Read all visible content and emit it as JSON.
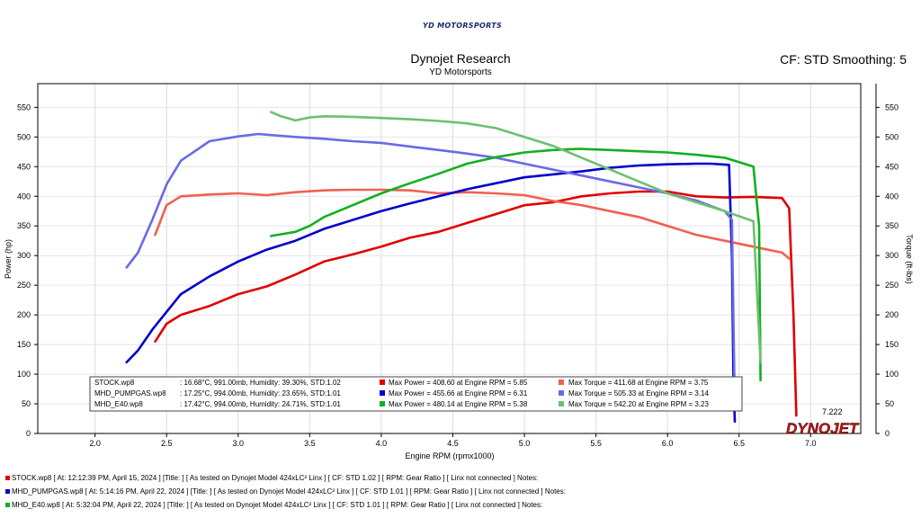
{
  "header": {
    "logo_text": "YD MOTORSPORTS",
    "title": "Dynojet Research",
    "subtitle": "YD Motorsports",
    "cf_label": "CF: STD Smoothing: 5"
  },
  "colors": {
    "stock_power": "#e00000",
    "stock_torque": "#f06050",
    "pump_power": "#0000cc",
    "pump_torque": "#6a6ae6",
    "e40_power": "#10b020",
    "e40_torque": "#6cc070"
  },
  "chart_data": {
    "type": "line",
    "xlabel": "Engine RPM (rpmx1000)",
    "ylabel": "Power (hp)",
    "y2label": "Torque (ft-lbs)",
    "xlim": [
      1.6,
      7.35
    ],
    "ylim": [
      0,
      590
    ],
    "xticks": [
      2.0,
      2.5,
      3.0,
      3.5,
      4.0,
      4.5,
      5.0,
      5.5,
      6.0,
      6.5,
      7.0
    ],
    "yticks": [
      0,
      50,
      100,
      150,
      200,
      250,
      300,
      350,
      400,
      450,
      500,
      550
    ],
    "cursor_label": "7.222",
    "brand": "DYNOJET",
    "legend": [
      {
        "run": "STOCK.wp8",
        "conditions": ": 16.68°C, 991.00mb, Humidity: 39.30%, STD:1.02",
        "max_power": "Max Power = 408.60 at Engine RPM = 5.85",
        "max_torque": "Max Torque = 411.68 at Engine RPM = 3.75"
      },
      {
        "run": "MHD_PUMPGAS.wp8",
        "conditions": ": 17.25°C, 994.00mb, Humidity: 23.65%, STD:1.01",
        "max_power": "Max Power = 455.66 at Engine RPM = 6.31",
        "max_torque": "Max Torque = 505.33 at Engine RPM = 3.14"
      },
      {
        "run": "MHD_E40.wp8",
        "conditions": ": 17.42°C, 994.00mb, Humidity: 24.71%, STD:1.01",
        "max_power": "Max Power = 480.14 at Engine RPM = 5.38",
        "max_torque": "Max Torque = 542.20 at Engine RPM = 3.23"
      }
    ],
    "series": [
      {
        "name": "STOCK.wp8",
        "measure": "power",
        "color_key": "stock_power",
        "x": [
          2.42,
          2.5,
          2.6,
          2.8,
          3.0,
          3.2,
          3.4,
          3.6,
          3.8,
          4.0,
          4.2,
          4.4,
          4.6,
          4.8,
          5.0,
          5.2,
          5.4,
          5.6,
          5.8,
          6.0,
          6.2,
          6.4,
          6.6,
          6.8,
          6.85,
          6.88,
          6.9
        ],
        "y": [
          155,
          185,
          200,
          215,
          235,
          248,
          268,
          290,
          302,
          315,
          330,
          340,
          355,
          370,
          385,
          390,
          400,
          405,
          408,
          408,
          400,
          398,
          399,
          397,
          380,
          200,
          30
        ]
      },
      {
        "name": "STOCK.wp8",
        "measure": "torque",
        "color_key": "stock_torque",
        "x": [
          2.42,
          2.5,
          2.6,
          2.8,
          3.0,
          3.2,
          3.4,
          3.6,
          3.8,
          4.0,
          4.2,
          4.4,
          4.6,
          4.8,
          5.0,
          5.2,
          5.4,
          5.6,
          5.8,
          6.0,
          6.2,
          6.4,
          6.6,
          6.8,
          6.85
        ],
        "y": [
          335,
          385,
          400,
          403,
          405,
          402,
          407,
          410,
          411,
          411,
          410,
          405,
          407,
          405,
          402,
          392,
          385,
          375,
          365,
          350,
          335,
          325,
          315,
          305,
          295
        ]
      },
      {
        "name": "MHD_PUMPGAS.wp8",
        "measure": "power",
        "color_key": "pump_power",
        "x": [
          2.22,
          2.3,
          2.4,
          2.5,
          2.6,
          2.8,
          3.0,
          3.2,
          3.4,
          3.6,
          3.8,
          4.0,
          4.2,
          4.4,
          4.6,
          4.8,
          5.0,
          5.2,
          5.4,
          5.6,
          5.8,
          6.0,
          6.2,
          6.3,
          6.43,
          6.45,
          6.46,
          6.47
        ],
        "y": [
          120,
          140,
          175,
          205,
          235,
          265,
          290,
          310,
          325,
          345,
          360,
          375,
          388,
          400,
          412,
          422,
          432,
          437,
          442,
          448,
          452,
          454,
          455,
          455,
          453,
          300,
          100,
          20
        ]
      },
      {
        "name": "MHD_PUMPGAS.wp8",
        "measure": "torque",
        "color_key": "pump_torque",
        "x": [
          2.22,
          2.3,
          2.4,
          2.5,
          2.6,
          2.8,
          3.0,
          3.14,
          3.4,
          3.6,
          3.8,
          4.0,
          4.2,
          4.4,
          4.6,
          4.8,
          5.0,
          5.2,
          5.4,
          5.6,
          5.8,
          6.0,
          6.2,
          6.4,
          6.45,
          6.47
        ],
        "y": [
          280,
          305,
          360,
          420,
          460,
          493,
          501,
          505,
          500,
          497,
          493,
          490,
          484,
          478,
          472,
          465,
          455,
          445,
          435,
          425,
          415,
          405,
          393,
          375,
          360,
          40
        ]
      },
      {
        "name": "MHD_E40.wp8",
        "measure": "power",
        "color_key": "e40_power",
        "x": [
          3.23,
          3.3,
          3.4,
          3.5,
          3.6,
          3.8,
          4.0,
          4.2,
          4.4,
          4.6,
          4.8,
          5.0,
          5.2,
          5.38,
          5.6,
          5.8,
          6.0,
          6.2,
          6.4,
          6.6,
          6.64,
          6.65
        ],
        "y": [
          333,
          336,
          340,
          350,
          365,
          385,
          405,
          422,
          438,
          455,
          466,
          474,
          478,
          480,
          478,
          476,
          474,
          470,
          465,
          450,
          350,
          90
        ]
      },
      {
        "name": "MHD_E40.wp8",
        "measure": "torque",
        "color_key": "e40_torque",
        "x": [
          3.23,
          3.3,
          3.4,
          3.5,
          3.6,
          3.8,
          4.0,
          4.2,
          4.4,
          4.6,
          4.8,
          5.0,
          5.2,
          5.4,
          5.6,
          5.8,
          6.0,
          6.2,
          6.4,
          6.6,
          6.65
        ],
        "y": [
          542,
          535,
          528,
          533,
          535,
          534,
          532,
          530,
          527,
          523,
          515,
          500,
          485,
          465,
          445,
          425,
          405,
          390,
          375,
          358,
          120
        ]
      }
    ]
  },
  "footer": {
    "lines": [
      {
        "color_key": "stock_power",
        "text": "STOCK.wp8 [ At: 12:12:39 PM, April 15, 2024 ] [Title: ] [ As tested on Dynojet Model 424xLC² Linx ] [ CF: STD 1.02 ] [ RPM: Gear Ratio ] [ Linx not connected ] Notes:"
      },
      {
        "color_key": "pump_power",
        "text": "MHD_PUMPGAS.wp8 [ At: 5:14:16 PM, April 22, 2024 ] [Title: ] [ As tested on Dynojet Model 424xLC² Linx ] [ CF: STD 1.01 ] [ RPM: Gear Ratio ] [ Linx not connected ] Notes:"
      },
      {
        "color_key": "e40_power",
        "text": "MHD_E40.wp8 [ At: 5:32:04 PM, April 22, 2024 ] [Title: ] [ As tested on Dynojet Model 424xLC² Linx ] [ CF: STD 1.01 ] [ RPM: Gear Ratio ] [ Linx not connected ] Notes:"
      }
    ]
  }
}
